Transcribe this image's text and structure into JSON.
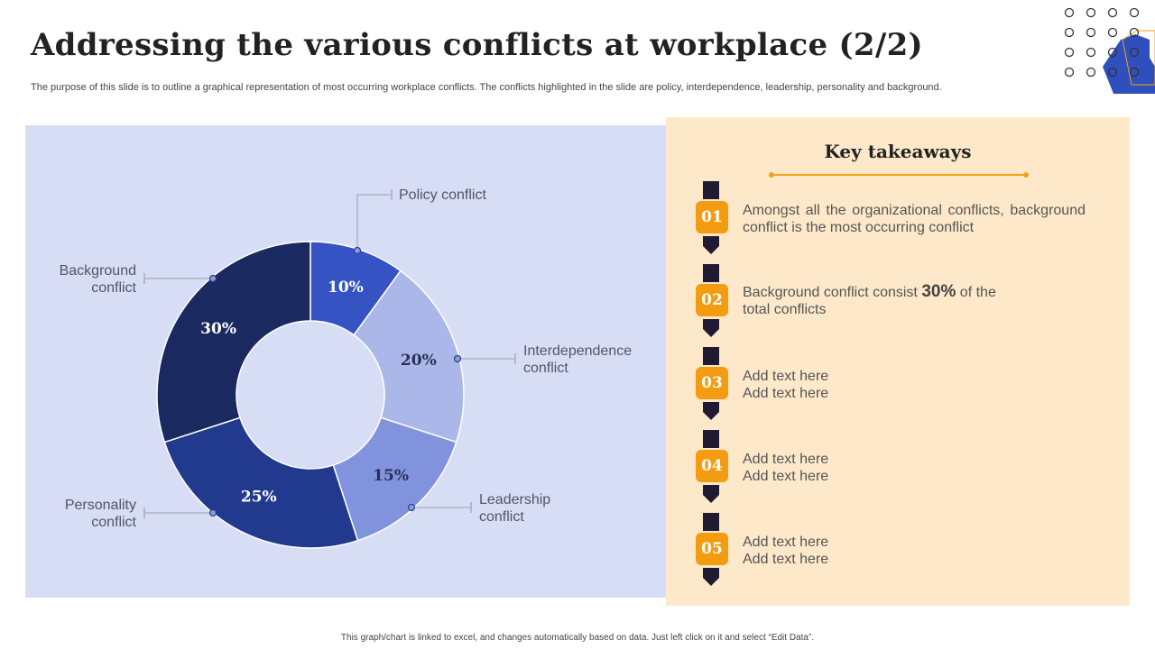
{
  "page": {
    "title": "Addressing the various conflicts at workplace (2/2)",
    "subtitle": "The purpose of this slide is to outline a graphical representation of most occurring workplace conflicts. The conflicts highlighted in the slide are policy, interdependence, leadership, personality and background.",
    "footer": "This graph/chart is linked to excel, and changes automatically based on data. Just left click on it and select “Edit Data”."
  },
  "chart_data": {
    "type": "pie",
    "title": "",
    "series": [
      {
        "name": "Policy conflict",
        "label_lines": [
          "Policy conflict"
        ],
        "value": 10,
        "display": "10%",
        "color": "#3653c3"
      },
      {
        "name": "Interdependence conflict",
        "label_lines": [
          "Interdependence",
          "conflict"
        ],
        "value": 20,
        "display": "20%",
        "color": "#aab7e8"
      },
      {
        "name": "Leadership conflict",
        "label_lines": [
          "Leadership",
          "conflict"
        ],
        "value": 15,
        "display": "15%",
        "color": "#8193dd"
      },
      {
        "name": "Personality conflict",
        "label_lines": [
          "Personality",
          "conflict"
        ],
        "value": 25,
        "display": "25%",
        "color": "#223a8e"
      },
      {
        "name": "Background conflict",
        "label_lines": [
          "Background",
          "conflict"
        ],
        "value": 30,
        "display": "30%",
        "color": "#1a2a60"
      }
    ]
  },
  "takeaways": {
    "title": "Key takeaways",
    "items": [
      {
        "num": "01",
        "text": "Amongst all the organizational conflicts, background conflict is the most occurring conflict"
      },
      {
        "num": "02",
        "pre": "Background conflict consist ",
        "highlight": "30%",
        "post": " of the total conflicts"
      },
      {
        "num": "03",
        "line1": "Add text here",
        "line2": "Add text here"
      },
      {
        "num": "04",
        "line1": "Add text here",
        "line2": "Add text here"
      },
      {
        "num": "05",
        "line1": "Add text here",
        "line2": "Add text here"
      }
    ]
  },
  "colors": {
    "accent": "#f39c12",
    "panel": "#d6ddf4",
    "takeaway_bg": "#fde9c9",
    "dark": "#201a33",
    "hexagon": "#2f4fbf"
  },
  "icons": {
    "decoration": "dot-grid-hexagon-icon"
  }
}
